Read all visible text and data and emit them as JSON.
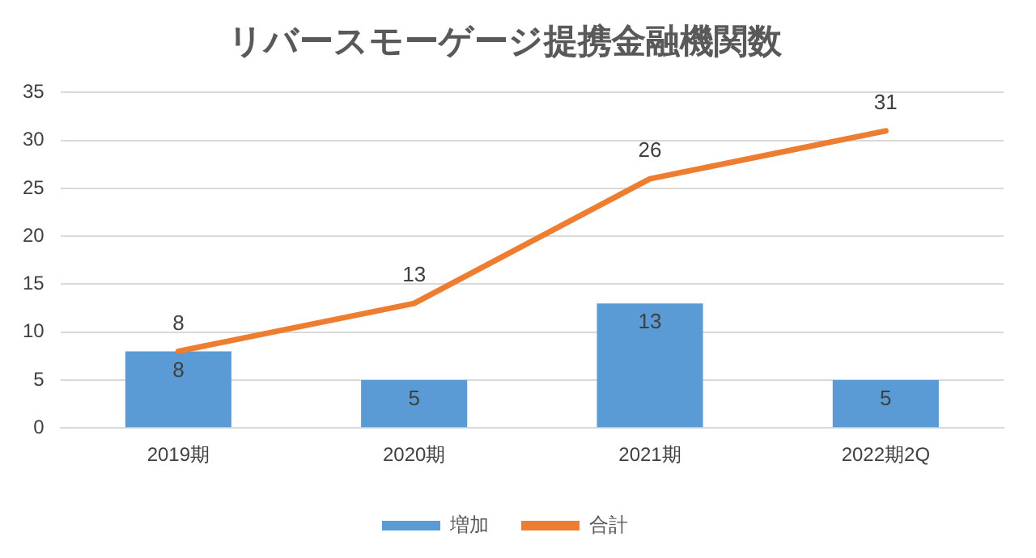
{
  "chart_data": {
    "type": "bar",
    "title": "リバースモーゲージ提携金融機関数",
    "categories": [
      "2019期",
      "2020期",
      "2021期",
      "2022期2Q"
    ],
    "series": [
      {
        "name": "増加",
        "color": "#5b9bd5",
        "values": [
          8,
          5,
          13,
          5
        ]
      },
      {
        "name": "合計",
        "type": "line",
        "color": "#ed7d31",
        "values": [
          8,
          13,
          26,
          31
        ]
      }
    ],
    "ylim": [
      0,
      35
    ],
    "yticks": [
      0,
      5,
      10,
      15,
      20,
      25,
      30,
      35
    ],
    "grid": "y",
    "legend": "bottom",
    "marker": "none",
    "data_labels": true
  }
}
